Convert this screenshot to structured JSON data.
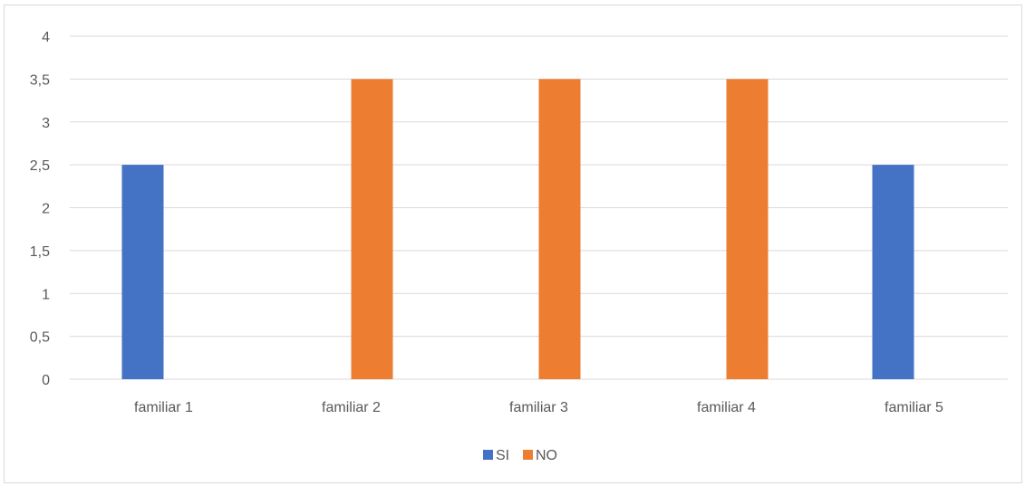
{
  "chart_data": {
    "type": "bar",
    "categories": [
      "familiar 1",
      "familiar 2",
      "familiar 3",
      "familiar 4",
      "familiar 5"
    ],
    "series": [
      {
        "name": "SI",
        "values": [
          2.5,
          0,
          0,
          0,
          2.5
        ],
        "color": "#4472C4"
      },
      {
        "name": "NO",
        "values": [
          0,
          3.5,
          3.5,
          3.5,
          0
        ],
        "color": "#ED7D31"
      }
    ],
    "title": "",
    "xlabel": "",
    "ylabel": "",
    "ylim": [
      0,
      4
    ],
    "yticks": [
      "0",
      "0,5",
      "1",
      "1,5",
      "2",
      "2,5",
      "3",
      "3,5",
      "4"
    ],
    "grid": true,
    "legend_position": "bottom",
    "gridline_color": "#d9d9d9",
    "text_color": "#595959"
  }
}
